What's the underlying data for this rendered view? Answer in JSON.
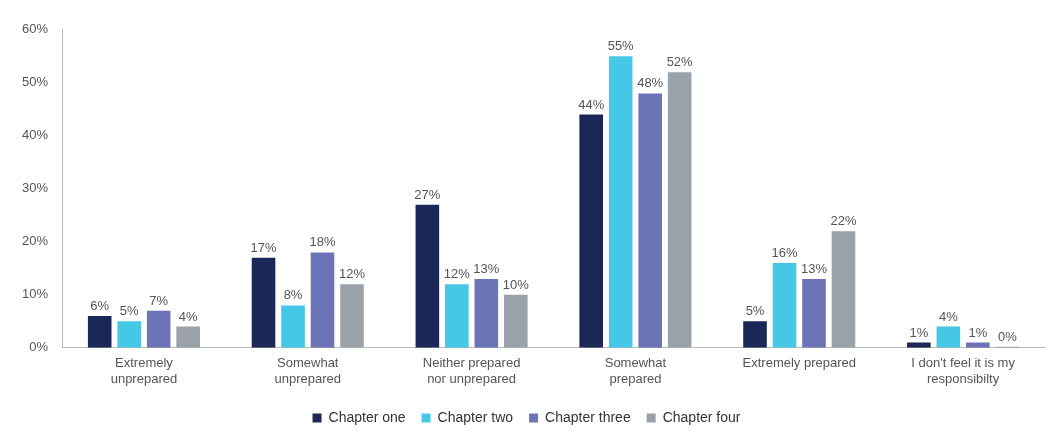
{
  "chart_data": {
    "type": "bar",
    "categories": [
      "Extremely\nunprepared",
      "Somewhat\nunprepared",
      "Neither prepared\nnor unprepared",
      "Somewhat\nprepared",
      "Extremely prepared",
      "I don't feel it is my\nresponsibilty"
    ],
    "series": [
      {
        "name": "Chapter one",
        "color": "#1b2757",
        "values": [
          6,
          17,
          27,
          44,
          5,
          1
        ],
        "value_labels": [
          "6%",
          "17%",
          "27%",
          "44%",
          "5%",
          "1%"
        ]
      },
      {
        "name": "Chapter two",
        "color": "#45c7e6",
        "values": [
          5,
          8,
          12,
          55,
          16,
          4
        ],
        "value_labels": [
          "5%",
          "8%",
          "12%",
          "55%",
          "16%",
          "4%"
        ]
      },
      {
        "name": "Chapter three",
        "color": "#6c74b8",
        "values": [
          7,
          18,
          13,
          48,
          13,
          1
        ],
        "value_labels": [
          "7%",
          "18%",
          "13%",
          "48%",
          "13%",
          "1%"
        ]
      },
      {
        "name": "Chapter four",
        "color": "#98a2a8",
        "values": [
          4,
          12,
          10,
          52,
          22,
          0
        ],
        "value_labels": [
          "4%",
          "12%",
          "10%",
          "52%",
          "22%",
          "0%"
        ]
      }
    ],
    "ylim": [
      0,
      60
    ],
    "yticks": [
      {
        "value": 0,
        "label": "0%"
      },
      {
        "value": 10,
        "label": "10%"
      },
      {
        "value": 20,
        "label": "20%"
      },
      {
        "value": 30,
        "label": "30%"
      },
      {
        "value": 40,
        "label": "40%"
      },
      {
        "value": 50,
        "label": "50%"
      },
      {
        "value": 60,
        "label": "60%"
      }
    ],
    "grid": false,
    "legend": "bottom"
  }
}
